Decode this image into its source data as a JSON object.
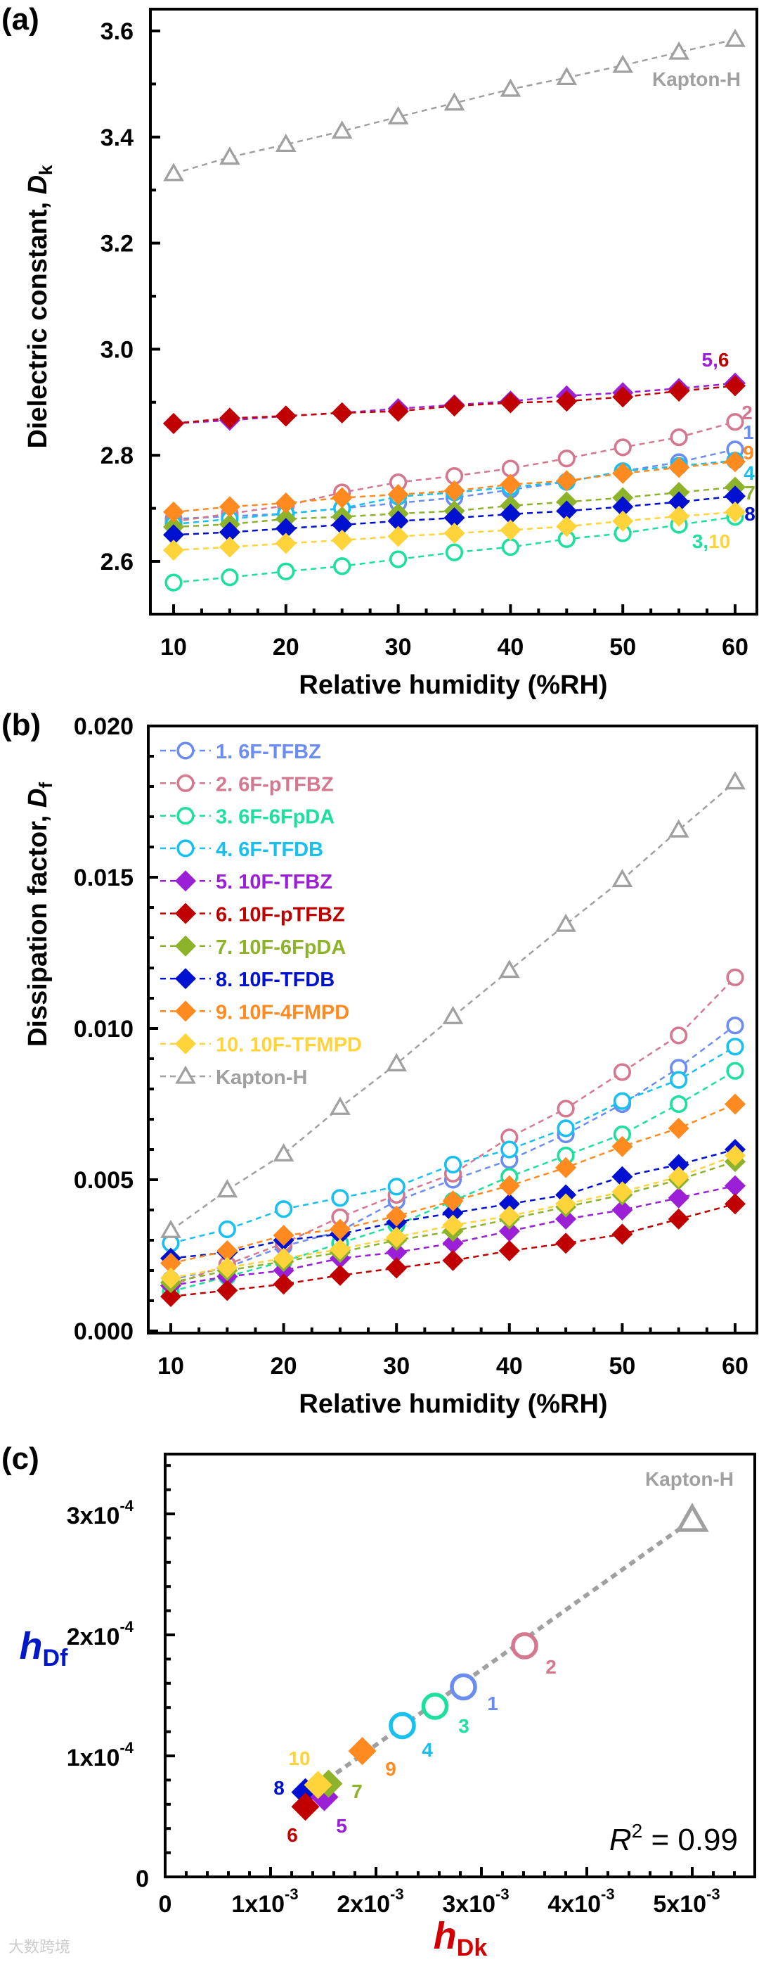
{
  "colors": {
    "1": "#6b8cf0",
    "2": "#d4788f",
    "3": "#1ddf9e",
    "4": "#18c0f0",
    "5": "#9a1fd6",
    "6": "#c00000",
    "7": "#8db32b",
    "8": "#0010d0",
    "9": "#ff8a1f",
    "10": "#ffd43b",
    "kapton": "#a0a0a0",
    "dk_title": "#d00000",
    "df_title": "#0018c8"
  },
  "watermark": "大数跨境",
  "chart_data": [
    {
      "panel": "(a)",
      "type": "line",
      "xlabel": "Relative humidity (%RH)",
      "ylabel": {
        "text": "Dielectric constant, ",
        "symbol": "D",
        "sub": "k"
      },
      "xlim": [
        8,
        62
      ],
      "ylim": [
        2.5,
        3.64
      ],
      "xticks": [
        "10",
        "20",
        "30",
        "40",
        "50",
        "60"
      ],
      "yticks": [
        "2.6",
        "2.8",
        "3.0",
        "3.2",
        "3.4",
        "3.6"
      ],
      "x": [
        10,
        15,
        20,
        25,
        30,
        35,
        40,
        45,
        50,
        55,
        60
      ],
      "series": [
        {
          "id": "kapton",
          "name": "Kapton-H",
          "marker": "triangle",
          "values": [
            3.331,
            3.362,
            3.386,
            3.411,
            3.438,
            3.464,
            3.49,
            3.512,
            3.535,
            3.56,
            3.584
          ]
        },
        {
          "id": "1",
          "name": "1. 6F-TFBZ",
          "marker": "circle",
          "values": [
            2.68,
            2.685,
            2.69,
            2.7,
            2.71,
            2.72,
            2.735,
            2.75,
            2.77,
            2.787,
            2.811
          ]
        },
        {
          "id": "2",
          "name": "2. 6F-pTFBZ",
          "marker": "circle",
          "values": [
            2.675,
            2.69,
            2.705,
            2.73,
            2.749,
            2.761,
            2.775,
            2.794,
            2.815,
            2.834,
            2.863
          ]
        },
        {
          "id": "4",
          "name": "4. 6F-TFDB",
          "marker": "circle",
          "values": [
            2.67,
            2.68,
            2.69,
            2.7,
            2.722,
            2.73,
            2.74,
            2.75,
            2.77,
            2.78,
            2.79
          ]
        },
        {
          "id": "3",
          "name": "3. 6F-6FpDA",
          "marker": "circle",
          "values": [
            2.56,
            2.57,
            2.581,
            2.591,
            2.604,
            2.617,
            2.627,
            2.642,
            2.653,
            2.669,
            2.684
          ]
        },
        {
          "id": "7",
          "name": "7. 10F-6FpDA",
          "marker": "diamond",
          "values": [
            2.665,
            2.67,
            2.68,
            2.684,
            2.69,
            2.695,
            2.705,
            2.712,
            2.72,
            2.73,
            2.74
          ]
        },
        {
          "id": "8",
          "name": "8. 10F-TFDB",
          "marker": "diamond",
          "values": [
            2.65,
            2.655,
            2.662,
            2.669,
            2.676,
            2.682,
            2.689,
            2.695,
            2.703,
            2.712,
            2.723
          ]
        },
        {
          "id": "10",
          "name": "10. 10F-TFMPD",
          "marker": "diamond",
          "values": [
            2.621,
            2.627,
            2.634,
            2.64,
            2.647,
            2.653,
            2.659,
            2.666,
            2.676,
            2.685,
            2.693
          ]
        },
        {
          "id": "9",
          "name": "9. 10F-4FMPD",
          "marker": "diamond",
          "values": [
            2.693,
            2.703,
            2.71,
            2.72,
            2.726,
            2.733,
            2.745,
            2.752,
            2.766,
            2.777,
            2.788
          ]
        },
        {
          "id": "5",
          "name": "5. 10F-TFBZ",
          "marker": "diamond",
          "values": [
            2.86,
            2.866,
            2.874,
            2.88,
            2.888,
            2.895,
            2.902,
            2.912,
            2.918,
            2.926,
            2.936
          ]
        },
        {
          "id": "6",
          "name": "6. 10F-pTFBZ",
          "marker": "diamond",
          "values": [
            2.86,
            2.87,
            2.874,
            2.88,
            2.883,
            2.893,
            2.899,
            2.902,
            2.91,
            2.921,
            2.931
          ]
        }
      ],
      "annotations": [
        {
          "key": "kapton",
          "text": "Kapton-H"
        },
        {
          "key": "56",
          "parts": [
            {
              "t": "5",
              "c": "5"
            },
            {
              "t": ",",
              "c": "5"
            },
            {
              "t": "6",
              "c": "6"
            }
          ]
        },
        {
          "key": "2",
          "parts": [
            {
              "t": "2",
              "c": "2"
            }
          ]
        },
        {
          "key": "1",
          "parts": [
            {
              "t": "1",
              "c": "1"
            }
          ]
        },
        {
          "key": "9",
          "parts": [
            {
              "t": "9",
              "c": "9"
            }
          ]
        },
        {
          "key": "4",
          "parts": [
            {
              "t": "4",
              "c": "4"
            }
          ]
        },
        {
          "key": "7",
          "parts": [
            {
              "t": "7",
              "c": "7"
            }
          ]
        },
        {
          "key": "8",
          "parts": [
            {
              "t": "8",
              "c": "8"
            }
          ]
        },
        {
          "key": "310",
          "parts": [
            {
              "t": "3",
              "c": "3"
            },
            {
              "t": ",",
              "c": "3"
            },
            {
              "t": "10",
              "c": "10"
            }
          ]
        }
      ]
    },
    {
      "panel": "(b)",
      "type": "line",
      "xlabel": "Relative humidity (%RH)",
      "ylabel": {
        "text": "Dissipation factor, ",
        "symbol": "D",
        "sub": "f"
      },
      "xlim": [
        8,
        62
      ],
      "ylim": [
        0,
        0.02
      ],
      "xticks": [
        "10",
        "20",
        "30",
        "40",
        "50",
        "60"
      ],
      "yticks": [
        "0.000",
        "0.005",
        "0.010",
        "0.015",
        "0.020"
      ],
      "legend": "top-left",
      "x": [
        10,
        15,
        20,
        25,
        30,
        35,
        40,
        45,
        50,
        55,
        60
      ],
      "series": [
        {
          "id": "1",
          "name": "1. 6F-TFBZ",
          "marker": "circle",
          "values": [
            0.0017,
            0.0021,
            0.0028,
            0.0033,
            0.0043,
            0.005,
            0.00565,
            0.0065,
            0.0075,
            0.0087,
            0.0101
          ]
        },
        {
          "id": "2",
          "name": "2. 6F-pTFBZ",
          "marker": "circle",
          "values": [
            0.0015,
            0.0022,
            0.0029,
            0.00376,
            0.0045,
            0.0052,
            0.0064,
            0.00735,
            0.00856,
            0.00977,
            0.01169
          ]
        },
        {
          "id": "3",
          "name": "3. 6F-6FpDA",
          "marker": "circle",
          "values": [
            0.0013,
            0.0018,
            0.0023,
            0.0029,
            0.0035,
            0.0043,
            0.0051,
            0.0058,
            0.0065,
            0.0075,
            0.0086
          ]
        },
        {
          "id": "4",
          "name": "4. 6F-TFDB",
          "marker": "circle",
          "values": [
            0.0029,
            0.00336,
            0.00403,
            0.0044,
            0.00477,
            0.0055,
            0.006,
            0.0067,
            0.0076,
            0.0083,
            0.0094
          ]
        },
        {
          "id": "5",
          "name": "5. 10F-TFBZ",
          "marker": "diamond",
          "values": [
            0.0015,
            0.0018,
            0.002,
            0.0024,
            0.0026,
            0.0029,
            0.0033,
            0.0037,
            0.004,
            0.0044,
            0.0048
          ]
        },
        {
          "id": "6",
          "name": "6. 10F-pTFBZ",
          "marker": "diamond",
          "values": [
            0.00114,
            0.00134,
            0.00155,
            0.00184,
            0.00208,
            0.00233,
            0.00265,
            0.0029,
            0.0032,
            0.0037,
            0.0042
          ]
        },
        {
          "id": "7",
          "name": "7. 10F-6FpDA",
          "marker": "diamond",
          "values": [
            0.0016,
            0.002,
            0.0023,
            0.0026,
            0.003,
            0.0033,
            0.0037,
            0.0041,
            0.0045,
            0.005,
            0.0056
          ]
        },
        {
          "id": "8",
          "name": "8. 10F-TFDB",
          "marker": "diamond",
          "values": [
            0.0024,
            0.0026,
            0.003,
            0.0032,
            0.0036,
            0.0039,
            0.0042,
            0.0045,
            0.0051,
            0.0055,
            0.006
          ]
        },
        {
          "id": "9",
          "name": "9. 10F-4FMPD",
          "marker": "diamond",
          "values": [
            0.00224,
            0.00265,
            0.00316,
            0.00336,
            0.0038,
            0.0043,
            0.0048,
            0.0054,
            0.0061,
            0.0067,
            0.0075
          ]
        },
        {
          "id": "10",
          "name": "10. 10F-TFMPD",
          "marker": "diamond",
          "values": [
            0.00175,
            0.0021,
            0.0024,
            0.0027,
            0.0031,
            0.0035,
            0.0038,
            0.0042,
            0.0046,
            0.0051,
            0.0058
          ]
        },
        {
          "id": "kapton",
          "name": "Kapton-H",
          "marker": "triangle",
          "values": [
            0.00332,
            0.00466,
            0.00585,
            0.00739,
            0.00883,
            0.01039,
            0.01192,
            0.01344,
            0.01492,
            0.01656,
            0.01815
          ]
        }
      ]
    },
    {
      "panel": "(c)",
      "type": "scatter",
      "xlabel": {
        "symbol": "h",
        "sub": "Dk"
      },
      "ylabel": {
        "symbol": "h",
        "sub": "Df"
      },
      "xlim": [
        0,
        0.00559
      ],
      "ylim": [
        0,
        0.000349
      ],
      "xticks": [
        {
          "base": "0",
          "exp": ""
        },
        {
          "base": "1x10",
          "exp": "-3"
        },
        {
          "base": "2x10",
          "exp": "-3"
        },
        {
          "base": "3x10",
          "exp": "-3"
        },
        {
          "base": "4x10",
          "exp": "-3"
        },
        {
          "base": "5x10",
          "exp": "-3"
        }
      ],
      "yticks": [
        {
          "base": "0",
          "exp": ""
        },
        {
          "base": "1x10",
          "exp": "-4"
        },
        {
          "base": "2x10",
          "exp": "-4"
        },
        {
          "base": "3x10",
          "exp": "-4"
        }
      ],
      "r2": {
        "symbol": "R",
        "exp": "2",
        "text": " = 0.99"
      },
      "fit": {
        "x": [
          0.00145,
          0.005
        ],
        "y": [
          7.5e-05,
          0.000295
        ]
      },
      "points": [
        {
          "id": "kapton",
          "label": "Kapton-H",
          "marker": "triangle",
          "x": 0.005,
          "y": 0.000295
        },
        {
          "id": "2",
          "label": "2",
          "marker": "circle",
          "x": 0.00341,
          "y": 0.000191
        },
        {
          "id": "1",
          "label": "1",
          "marker": "circle",
          "x": 0.00283,
          "y": 0.000157
        },
        {
          "id": "3",
          "label": "3",
          "marker": "circle",
          "x": 0.00256,
          "y": 0.000141
        },
        {
          "id": "4",
          "label": "4",
          "marker": "circle",
          "x": 0.00225,
          "y": 0.000125
        },
        {
          "id": "9",
          "label": "9",
          "marker": "diamond",
          "x": 0.00187,
          "y": 0.000104
        },
        {
          "id": "8",
          "label": "8",
          "marker": "diamond",
          "x": 0.00133,
          "y": 7e-05
        },
        {
          "id": "5",
          "label": "5",
          "marker": "diamond",
          "x": 0.00151,
          "y": 6.6e-05
        },
        {
          "id": "6",
          "label": "6",
          "marker": "diamond",
          "x": 0.00133,
          "y": 5.8e-05
        },
        {
          "id": "7",
          "label": "7",
          "marker": "diamond",
          "x": 0.00155,
          "y": 7.7e-05
        },
        {
          "id": "10",
          "label": "10",
          "marker": "diamond",
          "x": 0.00145,
          "y": 7.6e-05
        }
      ]
    }
  ]
}
